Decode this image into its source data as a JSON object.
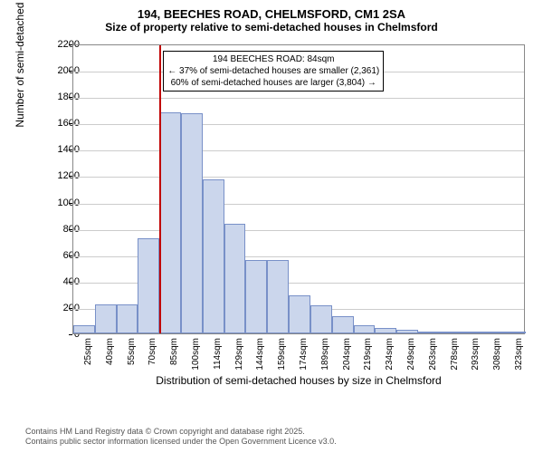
{
  "title": "194, BEECHES ROAD, CHELMSFORD, CM1 2SA",
  "subtitle": "Size of property relative to semi-detached houses in Chelmsford",
  "chart": {
    "type": "histogram",
    "ylabel": "Number of semi-detached properties",
    "xlabel": "Distribution of semi-detached houses by size in Chelmsford",
    "ylim": [
      0,
      2200
    ],
    "ytick_step": 200,
    "yticks": [
      0,
      200,
      400,
      600,
      800,
      1000,
      1200,
      1400,
      1600,
      1800,
      2000,
      2200
    ],
    "xticks": [
      "25sqm",
      "40sqm",
      "55sqm",
      "70sqm",
      "85sqm",
      "100sqm",
      "114sqm",
      "129sqm",
      "144sqm",
      "159sqm",
      "174sqm",
      "189sqm",
      "204sqm",
      "219sqm",
      "234sqm",
      "249sqm",
      "263sqm",
      "278sqm",
      "293sqm",
      "308sqm",
      "323sqm"
    ],
    "bars": [
      60,
      220,
      220,
      720,
      1680,
      1670,
      1170,
      830,
      560,
      560,
      290,
      210,
      130,
      60,
      40,
      25,
      8,
      15,
      5,
      3,
      2
    ],
    "bar_fill": "#cbd6ec",
    "bar_stroke": "#7890c8",
    "grid_color": "#cccccc",
    "background_color": "#ffffff",
    "marker_line_color": "#c00000",
    "marker_position_index": 4,
    "annotation": {
      "line1": "194 BEECHES ROAD: 84sqm",
      "line2": "← 37% of semi-detached houses are smaller (2,361)",
      "line3": "60% of semi-detached houses are larger (3,804) →"
    }
  },
  "footer": {
    "line1": "Contains HM Land Registry data © Crown copyright and database right 2025.",
    "line2": "Contains public sector information licensed under the Open Government Licence v3.0."
  }
}
